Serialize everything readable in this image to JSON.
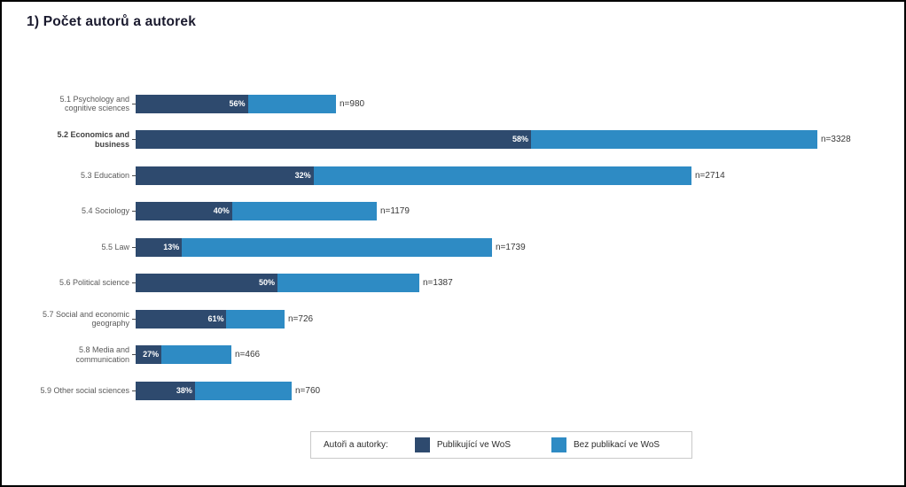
{
  "title": "1) Počet autorů a autorek",
  "colors": {
    "series_dark": "#2e4a6e",
    "series_light": "#2e8bc4",
    "category_label": "#595959",
    "n_label": "#383838",
    "legend_border": "#c9c9c9"
  },
  "legend": {
    "prefix": "Autoři a autorky:",
    "series1": "Publikující ve WoS",
    "series2": "Bez publikací ve WoS"
  },
  "chart_data": {
    "type": "bar",
    "orientation": "horizontal",
    "stacked": true,
    "title": "1) Počet autorů a autorek",
    "categories": [
      "5.1 Psychology and\ncognitive sciences",
      "5.2 Economics and\nbusiness",
      "5.3 Education",
      "5.4 Sociology",
      "5.5 Law",
      "5.6 Political science",
      "5.7 Social and economic\ngeography",
      "5.8 Media and\ncommunication",
      "5.9 Other social sciences"
    ],
    "highlight_index": 1,
    "series": [
      {
        "name": "Publikující ve WoS",
        "unit": "percent_of_total",
        "values": [
          56,
          58,
          32,
          40,
          13,
          50,
          61,
          27,
          38
        ]
      },
      {
        "name": "Bez publikací ve WoS",
        "unit": "percent_of_total",
        "values": [
          44,
          42,
          68,
          60,
          87,
          50,
          39,
          73,
          62
        ]
      }
    ],
    "totals": {
      "label_prefix": "n=",
      "values": [
        980,
        3328,
        2714,
        1179,
        1739,
        1387,
        726,
        466,
        760
      ]
    },
    "percent_label_format": "{value}%",
    "legend_position": "bottom",
    "grid": false
  }
}
